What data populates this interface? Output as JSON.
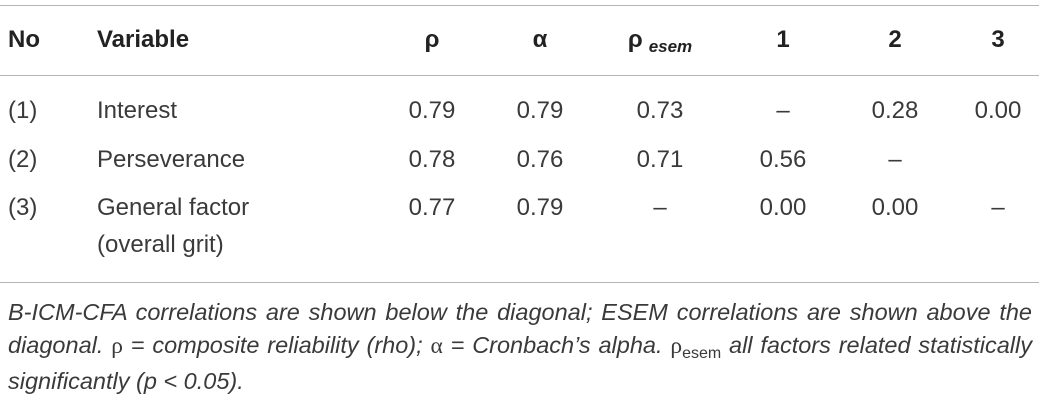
{
  "table": {
    "header": [
      "No",
      "Variable",
      "ρ",
      "α",
      {
        "symbol": "ρ",
        "subscript": "esem"
      },
      "1",
      "2",
      "3"
    ],
    "rows": [
      [
        "(1)",
        [
          "Interest"
        ],
        "0.79",
        "0.79",
        "0.73",
        "–",
        "0.28",
        "0.00"
      ],
      [
        "(2)",
        [
          "Perseverance"
        ],
        "0.78",
        "0.76",
        "0.71",
        "0.56",
        "–",
        null
      ],
      [
        "(3)",
        [
          "General factor",
          "(overall grit)"
        ],
        "0.77",
        "0.79",
        "–",
        "0.00",
        "0.00",
        "–"
      ]
    ]
  },
  "note": [
    {
      "text": "B-ICM-CFA correlations are shown below the diagonal; ESEM correlations are shown above the diagonal. ",
      "style": "italic"
    },
    {
      "text": "ρ",
      "style": "upright"
    },
    {
      "text": " = composite reliability (rho); ",
      "style": "italic"
    },
    {
      "text": "α",
      "style": "upright"
    },
    {
      "text": " = Cronbach’s alpha. ",
      "style": "italic"
    },
    {
      "text": "ρ",
      "style": "upright"
    },
    {
      "text": "esem",
      "style": "subscript"
    },
    {
      "text": " all factors related statistically significantly (p < 0.05).",
      "style": "italic"
    }
  ]
}
